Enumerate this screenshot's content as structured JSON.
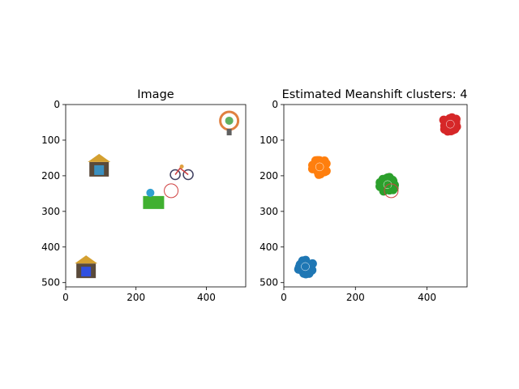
{
  "chart_data": [
    {
      "type": "scatter",
      "title": "Image",
      "xlim": [
        0,
        512
      ],
      "ylim": [
        512,
        0
      ],
      "x_ticks": [
        "0",
        "200",
        "400"
      ],
      "y_ticks": [
        "0",
        "100",
        "200",
        "300",
        "400",
        "500"
      ],
      "content": "image of emoji objects on white background",
      "objects": [
        {
          "name": "shrine-emoji",
          "x": 95,
          "y": 175
        },
        {
          "name": "ferris-wheel-emoji",
          "x": 465,
          "y": 50
        },
        {
          "name": "bicycle-emoji",
          "x": 330,
          "y": 190
        },
        {
          "name": "castle-emoji",
          "x": 58,
          "y": 460
        },
        {
          "name": "park-emoji",
          "x": 250,
          "y": 275
        }
      ],
      "marker": {
        "x": 300,
        "y": 242
      }
    },
    {
      "type": "scatter",
      "title": "Estimated Meanshift clusters: 4",
      "xlim": [
        0,
        512
      ],
      "ylim": [
        512,
        0
      ],
      "x_ticks": [
        "0",
        "200",
        "400"
      ],
      "y_ticks": [
        "0",
        "100",
        "200",
        "300",
        "400",
        "500"
      ],
      "series": [
        {
          "color": "#1f77b4",
          "center": [
            60,
            455
          ]
        },
        {
          "color": "#ff7f0e",
          "center": [
            100,
            175
          ]
        },
        {
          "color": "#2ca02c",
          "center": [
            290,
            225
          ]
        },
        {
          "color": "#d62728",
          "center": [
            465,
            55
          ]
        }
      ],
      "marker": {
        "x": 300,
        "y": 242
      }
    }
  ]
}
